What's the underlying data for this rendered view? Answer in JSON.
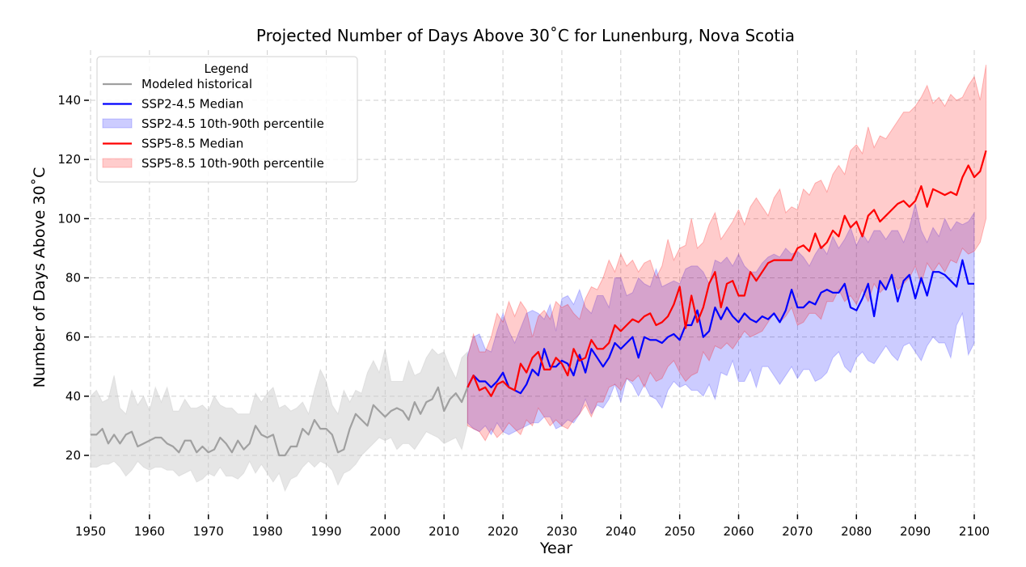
{
  "chart_data": {
    "type": "line",
    "title": "Projected Number of Days Above 30˚C for Lunenburg, Nova Scotia",
    "xlabel": "Year",
    "ylabel": "Number of Days Above 30˚C",
    "xlim": [
      1950,
      2100
    ],
    "ylim": [
      0,
      155
    ],
    "xticks": [
      1950,
      1960,
      1970,
      1980,
      1990,
      2000,
      2010,
      2020,
      2030,
      2040,
      2050,
      2060,
      2070,
      2080,
      2090,
      2100
    ],
    "yticks": [
      20,
      40,
      60,
      80,
      100,
      120,
      140
    ],
    "grid": true,
    "legend": {
      "title": "Legend",
      "placement": "top-left",
      "entries": [
        {
          "label": "Modeled historical",
          "kind": "line",
          "color": "#a0a0a0"
        },
        {
          "label": "SSP2-4.5 Median",
          "kind": "line",
          "color": "#0000ff"
        },
        {
          "label": "SSP2-4.5 10th-90th percentile",
          "kind": "band",
          "color": "#0000ff"
        },
        {
          "label": "SSP5-8.5 Median",
          "kind": "line",
          "color": "#ff0000"
        },
        {
          "label": "SSP5-8.5 10th-90th percentile",
          "kind": "band",
          "color": "#ff0000"
        }
      ]
    },
    "historical": {
      "name": "Modeled historical",
      "start_year": 1950,
      "color": "#a0a0a0",
      "median": [
        27,
        27,
        29,
        24,
        27,
        24,
        27,
        28,
        23,
        24,
        25,
        26,
        26,
        24,
        23,
        21,
        25,
        25,
        21,
        23,
        21,
        22,
        26,
        24,
        21,
        25,
        22,
        24,
        30,
        27,
        26,
        27,
        20,
        20,
        23,
        23,
        29,
        27,
        32,
        29,
        29,
        27,
        21,
        22,
        29,
        34,
        32,
        30,
        37,
        35,
        33,
        35,
        36,
        35,
        32,
        38,
        34,
        38,
        39,
        43,
        35,
        39,
        41,
        38,
        43
      ],
      "p10": [
        16,
        16,
        17,
        17,
        18,
        16,
        13,
        15,
        18,
        16,
        15,
        16,
        16,
        15,
        15,
        13,
        14,
        15,
        11,
        12,
        14,
        13,
        16,
        13,
        13,
        12,
        14,
        18,
        14,
        17,
        14,
        11,
        14,
        8,
        12,
        13,
        16,
        18,
        16,
        18,
        17,
        15,
        10,
        14,
        15,
        17,
        20,
        22,
        24,
        26,
        25,
        26,
        22,
        24,
        24,
        22,
        25,
        28,
        27,
        26,
        24,
        25,
        26,
        22,
        30
      ],
      "p90": [
        40,
        42,
        38,
        39,
        47,
        36,
        34,
        42,
        37,
        40,
        35,
        43,
        38,
        43,
        35,
        35,
        39,
        36,
        36,
        37,
        35,
        40,
        37,
        36,
        36,
        34,
        34,
        34,
        41,
        38,
        41,
        43,
        36,
        37,
        35,
        36,
        38,
        34,
        42,
        49,
        45,
        37,
        34,
        42,
        38,
        42,
        41,
        48,
        52,
        48,
        56,
        45,
        45,
        45,
        52,
        47,
        48,
        53,
        56,
        54,
        55,
        50,
        46,
        53,
        55
      ]
    },
    "ssp245": {
      "name": "SSP2-4.5",
      "start_year": 2014,
      "color": "#0000ff",
      "median": [
        43,
        47,
        45,
        45,
        43,
        45,
        48,
        43,
        42,
        41,
        44,
        49,
        47,
        56,
        50,
        50,
        52,
        51,
        47,
        54,
        48,
        56,
        53,
        50,
        53,
        58,
        56,
        58,
        60,
        53,
        60,
        59,
        59,
        58,
        60,
        61,
        59,
        64,
        64,
        69,
        60,
        62,
        70,
        66,
        70,
        67,
        65,
        68,
        66,
        65,
        67,
        66,
        68,
        65,
        69,
        76,
        70,
        70,
        72,
        71,
        75,
        76,
        75,
        75,
        78,
        70,
        69,
        73,
        78,
        67,
        79,
        76,
        81,
        72,
        79,
        81,
        73,
        80,
        74,
        82,
        82,
        81,
        79,
        77,
        86,
        78,
        78
      ],
      "p10": [
        31,
        29,
        28,
        30,
        27,
        31,
        28,
        27,
        28,
        29,
        30,
        31,
        31,
        33,
        33,
        29,
        30,
        32,
        31,
        34,
        39,
        34,
        37,
        36,
        39,
        44,
        38,
        46,
        44,
        40,
        44,
        40,
        39,
        36,
        42,
        45,
        43,
        44,
        42,
        42,
        40,
        44,
        39,
        48,
        47,
        52,
        45,
        45,
        49,
        43,
        50,
        50,
        47,
        44,
        47,
        50,
        46,
        49,
        49,
        45,
        46,
        48,
        53,
        55,
        50,
        48,
        53,
        55,
        52,
        51,
        54,
        57,
        54,
        52,
        57,
        58,
        55,
        52,
        57,
        60,
        58,
        58,
        53,
        64,
        68,
        54,
        58
      ],
      "p90": [
        54,
        60,
        61,
        56,
        55,
        62,
        68,
        62,
        58,
        63,
        68,
        69,
        68,
        66,
        71,
        62,
        73,
        74,
        71,
        76,
        70,
        68,
        74,
        74,
        70,
        80,
        80,
        74,
        75,
        80,
        78,
        77,
        83,
        77,
        78,
        79,
        78,
        83,
        84,
        84,
        82,
        78,
        86,
        85,
        87,
        84,
        88,
        84,
        82,
        82,
        85,
        87,
        88,
        87,
        90,
        88,
        89,
        87,
        84,
        88,
        91,
        88,
        94,
        90,
        93,
        97,
        91,
        95,
        92,
        96,
        96,
        93,
        96,
        96,
        92,
        97,
        105,
        96,
        92,
        97,
        94,
        100,
        96,
        99,
        98,
        99,
        102
      ]
    },
    "ssp585": {
      "name": "SSP5-8.5",
      "start_year": 2014,
      "color": "#ff0000",
      "median": [
        43,
        47,
        42,
        43,
        40,
        44,
        45,
        43,
        42,
        51,
        48,
        53,
        55,
        49,
        49,
        53,
        51,
        47,
        56,
        52,
        53,
        59,
        56,
        56,
        58,
        64,
        62,
        64,
        66,
        65,
        67,
        68,
        64,
        65,
        67,
        71,
        77,
        63,
        74,
        65,
        70,
        78,
        82,
        70,
        78,
        79,
        74,
        74,
        82,
        79,
        82,
        85,
        86,
        86,
        86,
        86,
        90,
        91,
        89,
        95,
        90,
        92,
        96,
        94,
        101,
        97,
        99,
        94,
        101,
        103,
        99,
        101,
        103,
        105,
        106,
        104,
        106,
        111,
        104,
        110,
        109,
        108,
        109,
        108,
        114,
        118,
        114,
        116,
        123
      ],
      "p10": [
        30,
        29,
        28,
        25,
        29,
        26,
        28,
        31,
        29,
        27,
        32,
        30,
        36,
        33,
        30,
        32,
        30,
        29,
        32,
        34,
        37,
        33,
        38,
        38,
        43,
        44,
        42,
        46,
        45,
        47,
        43,
        48,
        45,
        46,
        50,
        52,
        48,
        45,
        47,
        48,
        55,
        52,
        57,
        56,
        58,
        56,
        59,
        62,
        60,
        61,
        62,
        65,
        68,
        65,
        67,
        70,
        64,
        65,
        68,
        68,
        66,
        72,
        72,
        76,
        72,
        74,
        71,
        76,
        72,
        78,
        75,
        77,
        80,
        76,
        78,
        80,
        84,
        78,
        85,
        82,
        85,
        82,
        86,
        85,
        90,
        88,
        89,
        92,
        100
      ],
      "p90": [
        53,
        61,
        55,
        55,
        60,
        68,
        65,
        72,
        67,
        72,
        69,
        60,
        67,
        69,
        66,
        72,
        70,
        71,
        68,
        66,
        73,
        77,
        76,
        80,
        86,
        82,
        88,
        84,
        86,
        82,
        85,
        86,
        80,
        84,
        93,
        86,
        90,
        91,
        100,
        90,
        92,
        98,
        102,
        93,
        96,
        99,
        103,
        98,
        104,
        107,
        104,
        101,
        107,
        110,
        102,
        104,
        103,
        110,
        108,
        112,
        113,
        109,
        115,
        118,
        115,
        123,
        125,
        122,
        131,
        124,
        128,
        127,
        130,
        133,
        136,
        136,
        138,
        141,
        145,
        139,
        141,
        138,
        142,
        140,
        141,
        145,
        148,
        140,
        152
      ]
    }
  }
}
